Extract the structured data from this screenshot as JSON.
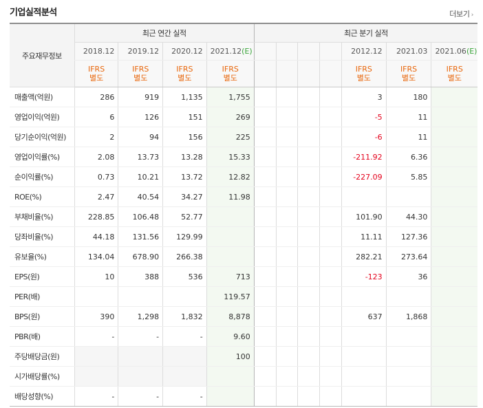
{
  "header": {
    "title": "기업실적분석",
    "more_label": "더보기",
    "more_arrow": "›"
  },
  "table": {
    "corner_label": "주요재무정보",
    "annual_label": "최근 연간 실적",
    "quarter_label": "최근 분기 실적",
    "annual_periods": [
      "2018.12",
      "2019.12",
      "2020.12",
      "2021.12(E)"
    ],
    "quarter_periods": [
      "",
      "",
      "",
      "",
      "2012.12",
      "2021.03",
      "2021.06(E)"
    ],
    "ifrs_top": "IFRS",
    "ifrs_bottom": "별도",
    "rows": [
      {
        "label": "매출액(억원)",
        "annual": [
          "286",
          "919",
          "1,135",
          "1,755"
        ],
        "quarter": [
          "",
          "",
          "",
          "",
          "3",
          "180",
          ""
        ]
      },
      {
        "label": "영업이익(억원)",
        "annual": [
          "6",
          "126",
          "151",
          "269"
        ],
        "quarter": [
          "",
          "",
          "",
          "",
          "-5",
          "11",
          ""
        ]
      },
      {
        "label": "당기순이익(억원)",
        "annual": [
          "2",
          "94",
          "156",
          "225"
        ],
        "quarter": [
          "",
          "",
          "",
          "",
          "-6",
          "11",
          ""
        ]
      },
      {
        "label": "영업이익률(%)",
        "annual": [
          "2.08",
          "13.73",
          "13.28",
          "15.33"
        ],
        "quarter": [
          "",
          "",
          "",
          "",
          "-211.92",
          "6.36",
          ""
        ]
      },
      {
        "label": "순이익률(%)",
        "annual": [
          "0.73",
          "10.21",
          "13.72",
          "12.82"
        ],
        "quarter": [
          "",
          "",
          "",
          "",
          "-227.09",
          "5.85",
          ""
        ]
      },
      {
        "label": "ROE(%)",
        "annual": [
          "2.47",
          "40.54",
          "34.27",
          "11.98"
        ],
        "quarter": [
          "",
          "",
          "",
          "",
          "",
          "",
          ""
        ]
      },
      {
        "label": "부채비율(%)",
        "annual": [
          "228.85",
          "106.48",
          "52.77",
          ""
        ],
        "quarter": [
          "",
          "",
          "",
          "",
          "101.90",
          "44.30",
          ""
        ]
      },
      {
        "label": "당좌비율(%)",
        "annual": [
          "44.18",
          "131.56",
          "129.99",
          ""
        ],
        "quarter": [
          "",
          "",
          "",
          "",
          "11.11",
          "127.36",
          ""
        ]
      },
      {
        "label": "유보율(%)",
        "annual": [
          "134.04",
          "678.90",
          "266.38",
          ""
        ],
        "quarter": [
          "",
          "",
          "",
          "",
          "282.21",
          "273.64",
          ""
        ]
      },
      {
        "label": "EPS(원)",
        "annual": [
          "10",
          "388",
          "536",
          "713"
        ],
        "quarter": [
          "",
          "",
          "",
          "",
          "-123",
          "36",
          ""
        ]
      },
      {
        "label": "PER(배)",
        "annual": [
          "",
          "",
          "",
          "119.57"
        ],
        "quarter": [
          "",
          "",
          "",
          "",
          "",
          "",
          ""
        ]
      },
      {
        "label": "BPS(원)",
        "annual": [
          "390",
          "1,298",
          "1,832",
          "8,878"
        ],
        "quarter": [
          "",
          "",
          "",
          "",
          "637",
          "1,868",
          ""
        ]
      },
      {
        "label": "PBR(배)",
        "annual": [
          "-",
          "-",
          "-",
          "9.60"
        ],
        "quarter": [
          "",
          "",
          "",
          "",
          "",
          "",
          ""
        ]
      },
      {
        "label": "주당배당금(원)",
        "annual": [
          "",
          "",
          "",
          "100"
        ],
        "quarter": [
          "",
          "",
          "",
          "",
          "",
          "",
          ""
        ]
      },
      {
        "label": "시가배당률(%)",
        "annual": [
          "",
          "",
          "",
          ""
        ],
        "quarter": [
          "",
          "",
          "",
          "",
          "",
          "",
          ""
        ]
      },
      {
        "label": "배당성향(%)",
        "annual": [
          "-",
          "-",
          "-",
          ""
        ],
        "quarter": [
          "",
          "",
          "",
          "",
          "",
          "",
          ""
        ]
      }
    ]
  },
  "colors": {
    "ifrs": "#e8660b",
    "negative": "#e4001b",
    "estimate_bg": "#f3f9f1",
    "estimate_mark": "#3aa53a"
  }
}
